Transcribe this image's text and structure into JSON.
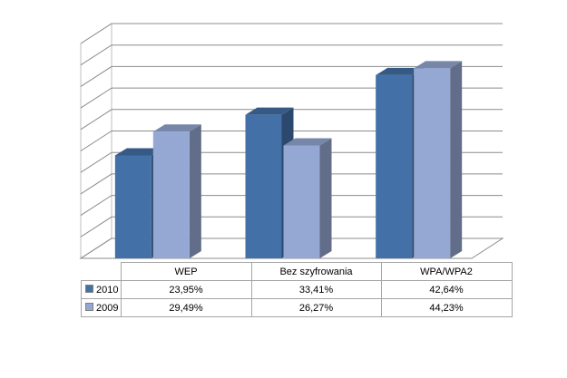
{
  "chart_data": {
    "type": "bar",
    "categories": [
      "WEP",
      "Bez szyfrowania",
      "WPA/WPA2"
    ],
    "series": [
      {
        "name": "2010",
        "values": [
          23.95,
          33.41,
          42.64
        ],
        "labels": [
          "23,95%",
          "33,41%",
          "42,64%"
        ],
        "color": "#4470a8"
      },
      {
        "name": "2009",
        "values": [
          29.49,
          26.27,
          44.23
        ],
        "labels": [
          "29,49%",
          "26,27%",
          "44,23%"
        ],
        "color": "#95a8d3"
      }
    ],
    "ylim": [
      0,
      50
    ],
    "grid": true,
    "legend": "data-table"
  }
}
